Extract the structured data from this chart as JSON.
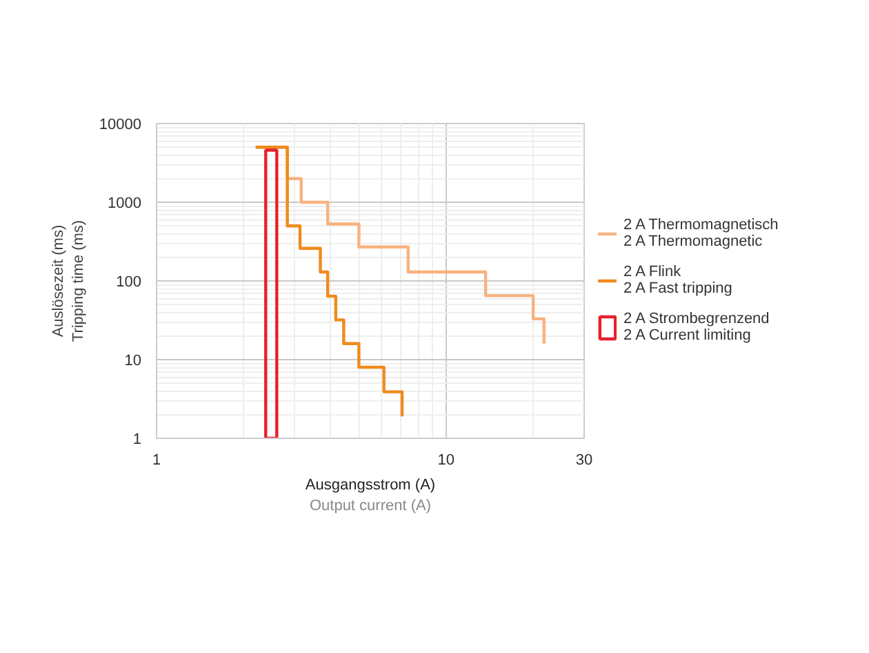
{
  "chart_data": {
    "type": "step",
    "xlabel": "Ausgangsstrom (A)\nOutput current (A)",
    "ylabel": "Auslösezeit (ms)\nTripping time (ms)",
    "log": "xy",
    "xlim": [
      1,
      30
    ],
    "ylim": [
      1,
      10000
    ],
    "xticks": [
      1,
      10,
      30
    ],
    "yticks": [
      1,
      10,
      100,
      1000,
      10000
    ],
    "grid": true,
    "legend": "right",
    "series": [
      {
        "name": "2 A Thermomagnetisch\n2 A Thermomagnetic",
        "color": "#f7b27f",
        "x": [
          2.2,
          2.83,
          3.16,
          3.9,
          5.0,
          7.4,
          13.7,
          20,
          21.8
        ],
        "values": [
          5000,
          2000,
          1000,
          530,
          270,
          130,
          65,
          33,
          16
        ]
      },
      {
        "name": "2 A Flink\n2 A Fast tripping",
        "color": "#f08a1c",
        "x": [
          2.2,
          2.83,
          3.13,
          3.68,
          3.9,
          4.16,
          4.43,
          5.0,
          6.1,
          7.05
        ],
        "values": [
          5000,
          500,
          260,
          130,
          64,
          32,
          16,
          8,
          3.9,
          1.9
        ]
      },
      {
        "name": "2 A Strombegrenzend\n2 A Current limiting",
        "color": "#e8202a",
        "type": "bar",
        "x": [
          2.49
        ],
        "base": [
          1
        ],
        "values": [
          4599
        ]
      }
    ]
  }
}
